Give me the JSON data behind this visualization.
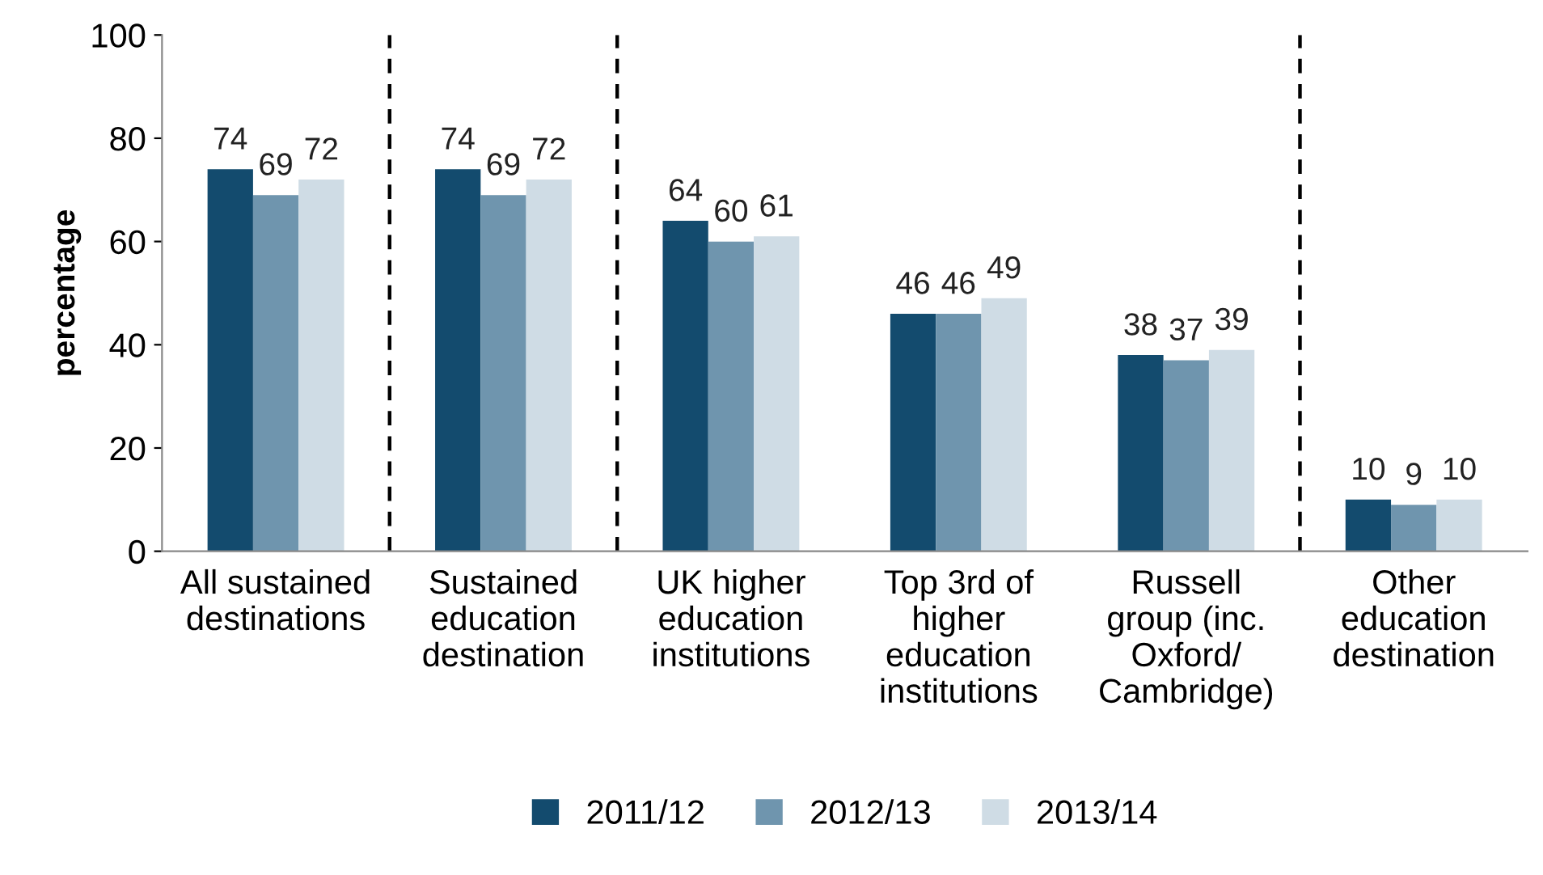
{
  "chart_data": {
    "type": "bar",
    "ylabel": "percentage",
    "categories": [
      "All sustained\ndestinations",
      "Sustained\neducation\ndestination",
      "UK higher\neducation\ninstitutions",
      "Top 3rd of\nhigher\neducation\ninstitutions",
      "Russell\ngroup (inc.\nOxford/\nCambridge)",
      "Other\neducation\ndestination"
    ],
    "series": [
      {
        "name": "2011/12",
        "color": "#134b6e",
        "values": [
          74,
          74,
          64,
          46,
          38,
          10
        ]
      },
      {
        "name": "2012/13",
        "color": "#6f95ae",
        "values": [
          69,
          69,
          60,
          46,
          37,
          9
        ]
      },
      {
        "name": "2013/14",
        "color": "#cfdce5",
        "values": [
          72,
          72,
          61,
          49,
          39,
          10
        ]
      }
    ],
    "ylim": [
      0,
      100
    ],
    "yticks": [
      0,
      20,
      40,
      60,
      80,
      100
    ],
    "data_labels": true,
    "grid": false,
    "legend": "bottom"
  }
}
